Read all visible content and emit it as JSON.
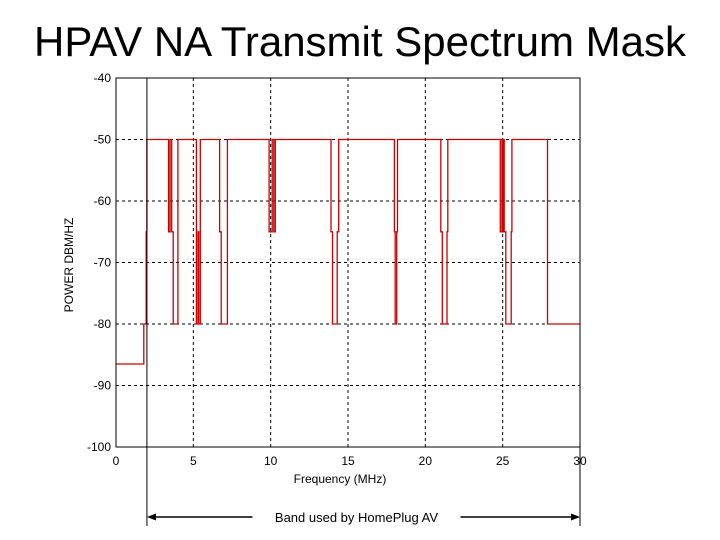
{
  "page": {
    "title": "HPAV NA Transmit Spectrum Mask"
  },
  "chart_data": {
    "type": "line",
    "title": "HPAV NA Transmit Spectrum Mask",
    "xlabel": "Frequency (MHz)",
    "ylabel": "POWER DBM/HZ",
    "xlim": [
      0,
      30
    ],
    "ylim": [
      -100,
      -40
    ],
    "x_ticks": [
      0,
      5,
      10,
      15,
      20,
      25,
      30
    ],
    "y_ticks": [
      -40,
      -50,
      -60,
      -70,
      -80,
      -90,
      -100
    ],
    "grid": true,
    "series": [
      {
        "name": "Transmit spectrum mask",
        "color": "#cc0000",
        "points": [
          [
            0,
            -86.5
          ],
          [
            1.8,
            -86.5
          ],
          [
            1.8,
            -80
          ],
          [
            1.95,
            -80
          ],
          [
            1.95,
            -65
          ],
          [
            2.0,
            -65
          ],
          [
            2.0,
            -50
          ],
          [
            3.4,
            -50
          ],
          [
            3.4,
            -65
          ],
          [
            3.5,
            -65
          ],
          [
            3.5,
            -50
          ],
          [
            3.6,
            -50
          ],
          [
            3.6,
            -65
          ],
          [
            3.7,
            -65
          ],
          [
            3.7,
            -80
          ],
          [
            4.0,
            -80
          ],
          [
            4.0,
            -50
          ],
          [
            5.2,
            -50
          ],
          [
            5.2,
            -80
          ],
          [
            5.3,
            -80
          ],
          [
            5.3,
            -65
          ],
          [
            5.35,
            -65
          ],
          [
            5.35,
            -80
          ],
          [
            5.45,
            -80
          ],
          [
            5.45,
            -50
          ],
          [
            6.7,
            -50
          ],
          [
            6.7,
            -65
          ],
          [
            6.8,
            -65
          ],
          [
            6.8,
            -80
          ],
          [
            7.2,
            -80
          ],
          [
            7.2,
            -50
          ],
          [
            9.9,
            -50
          ],
          [
            9.9,
            -65
          ],
          [
            10.1,
            -65
          ],
          [
            10.1,
            -50
          ],
          [
            10.2,
            -50
          ],
          [
            10.2,
            -65
          ],
          [
            10.3,
            -65
          ],
          [
            10.3,
            -50
          ],
          [
            13.9,
            -50
          ],
          [
            13.9,
            -65
          ],
          [
            14.0,
            -65
          ],
          [
            14.0,
            -80
          ],
          [
            14.3,
            -80
          ],
          [
            14.3,
            -65
          ],
          [
            14.4,
            -65
          ],
          [
            14.4,
            -50
          ],
          [
            18.0,
            -50
          ],
          [
            18.0,
            -65
          ],
          [
            18.05,
            -65
          ],
          [
            18.05,
            -80
          ],
          [
            18.15,
            -80
          ],
          [
            18.15,
            -65
          ],
          [
            18.2,
            -65
          ],
          [
            18.2,
            -50
          ],
          [
            21.0,
            -50
          ],
          [
            21.0,
            -65
          ],
          [
            21.1,
            -65
          ],
          [
            21.1,
            -80
          ],
          [
            21.4,
            -80
          ],
          [
            21.4,
            -65
          ],
          [
            21.45,
            -65
          ],
          [
            21.45,
            -50
          ],
          [
            24.85,
            -50
          ],
          [
            24.85,
            -65
          ],
          [
            24.95,
            -65
          ],
          [
            24.95,
            -50
          ],
          [
            25.0,
            -50
          ],
          [
            25.0,
            -65
          ],
          [
            25.05,
            -65
          ],
          [
            25.05,
            -50
          ],
          [
            25.1,
            -50
          ],
          [
            25.1,
            -65
          ],
          [
            25.2,
            -65
          ],
          [
            25.2,
            -80
          ],
          [
            25.55,
            -80
          ],
          [
            25.55,
            -65
          ],
          [
            25.6,
            -65
          ],
          [
            25.6,
            -50
          ],
          [
            27.9,
            -50
          ],
          [
            27.9,
            -80
          ],
          [
            30,
            -80
          ]
        ]
      }
    ],
    "annotations": [
      {
        "text": "Band used by HomePlug AV",
        "x_start": 2,
        "x_end": 30
      }
    ]
  }
}
